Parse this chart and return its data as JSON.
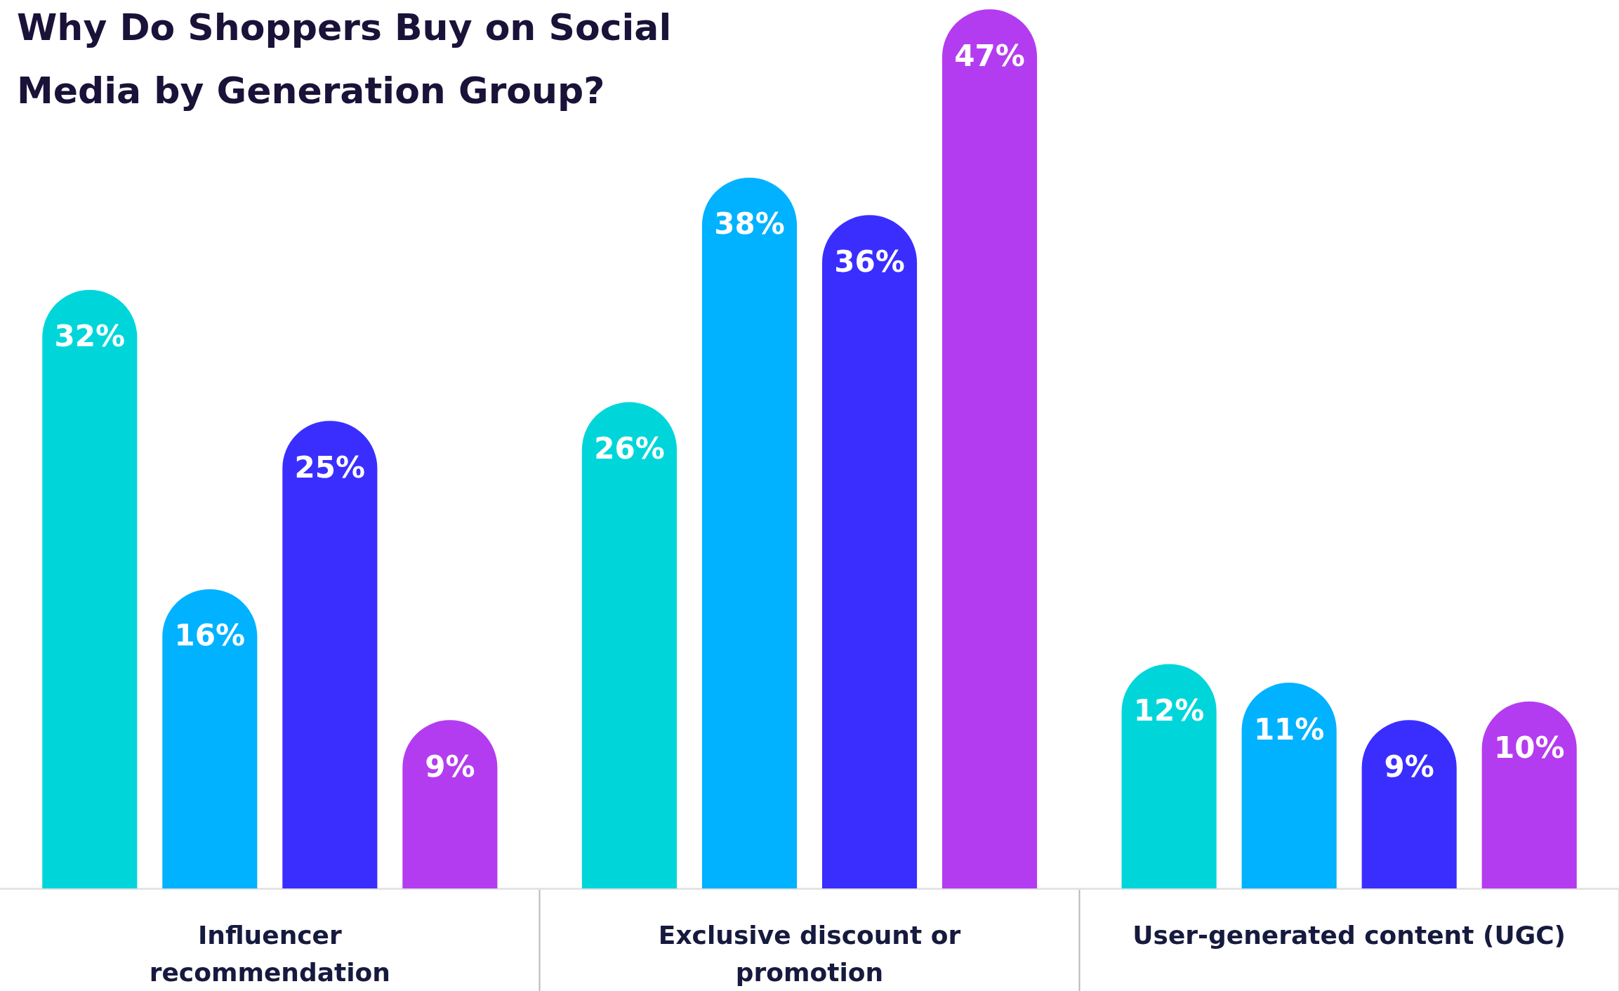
{
  "chart_data": {
    "type": "bar",
    "title": "Why Do Shoppers Buy on Social Media by Generation Group?",
    "categories": [
      "Influencer\nrecommendation",
      "Exclusive discount or\npromotion",
      "User-generated content (UGC)"
    ],
    "series": [
      {
        "color": "#00d6da",
        "values": [
          32,
          26,
          12
        ],
        "value_labels": [
          "32%",
          "26%",
          "12%"
        ]
      },
      {
        "color": "#00b2ff",
        "values": [
          16,
          38,
          11
        ],
        "value_labels": [
          "16%",
          "38%",
          "11%"
        ]
      },
      {
        "color": "#3a2eff",
        "values": [
          25,
          36,
          9
        ],
        "value_labels": [
          "25%",
          "36%",
          "9%"
        ]
      },
      {
        "color": "#b43cf0",
        "values": [
          9,
          47,
          10
        ],
        "value_labels": [
          "9%",
          "47%",
          "10%"
        ]
      }
    ],
    "ylim": [
      0,
      47.5
    ],
    "tick_labels": "x"
  }
}
